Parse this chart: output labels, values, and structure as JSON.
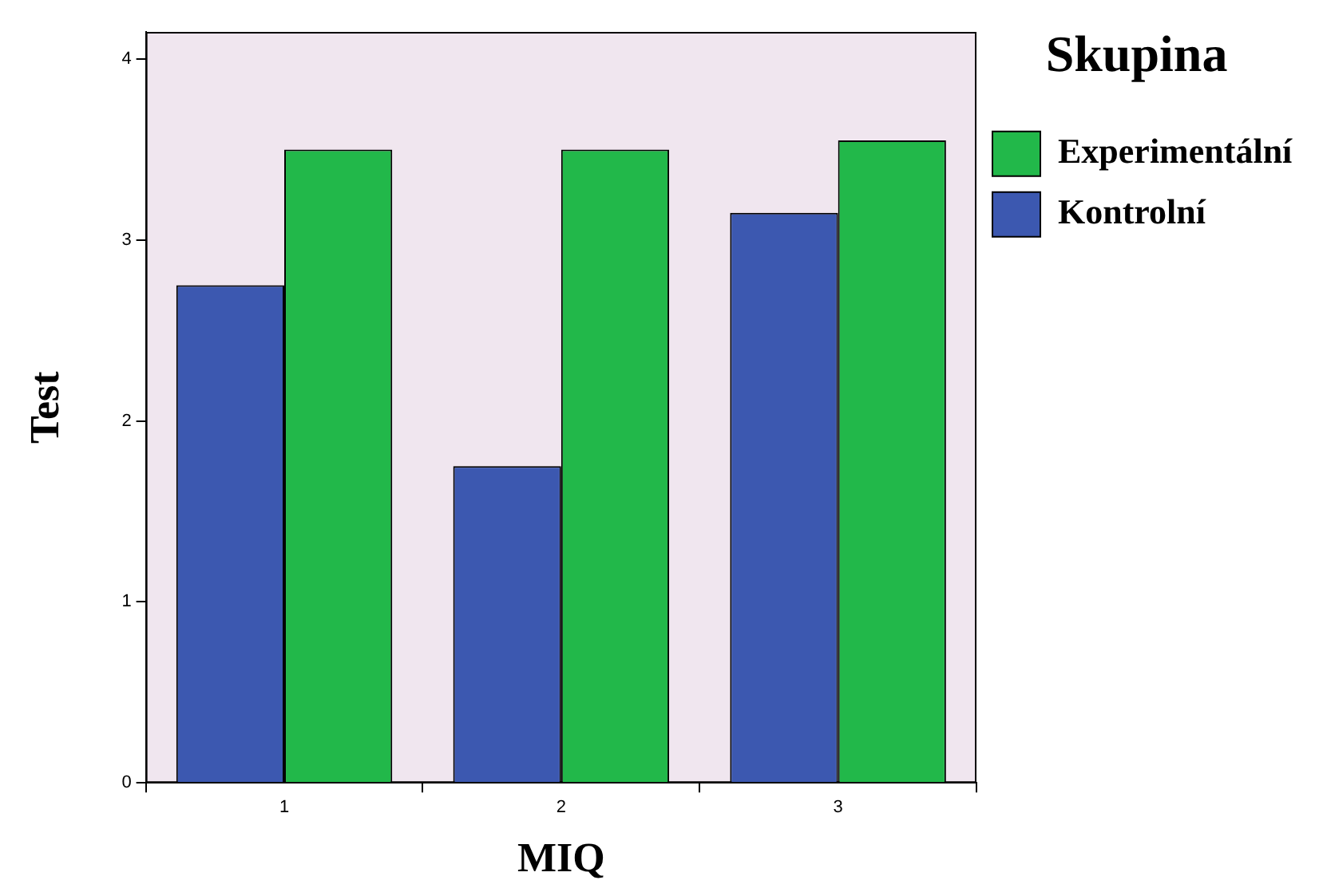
{
  "chart_data": {
    "type": "bar",
    "xlabel": "MIQ",
    "ylabel": "Test",
    "legend_title": "Skupina",
    "categories": [
      "1",
      "2",
      "3"
    ],
    "series": [
      {
        "name": "Kontrolní",
        "color": "#3c58b0",
        "values": [
          2.75,
          1.75,
          3.15
        ]
      },
      {
        "name": "Experimentální",
        "color": "#22b84a",
        "values": [
          3.5,
          3.5,
          3.55
        ]
      }
    ],
    "ylim": [
      0,
      4.15
    ],
    "yticks": [
      0,
      1,
      2,
      3,
      4
    ],
    "grid": false,
    "legend": "top right"
  }
}
